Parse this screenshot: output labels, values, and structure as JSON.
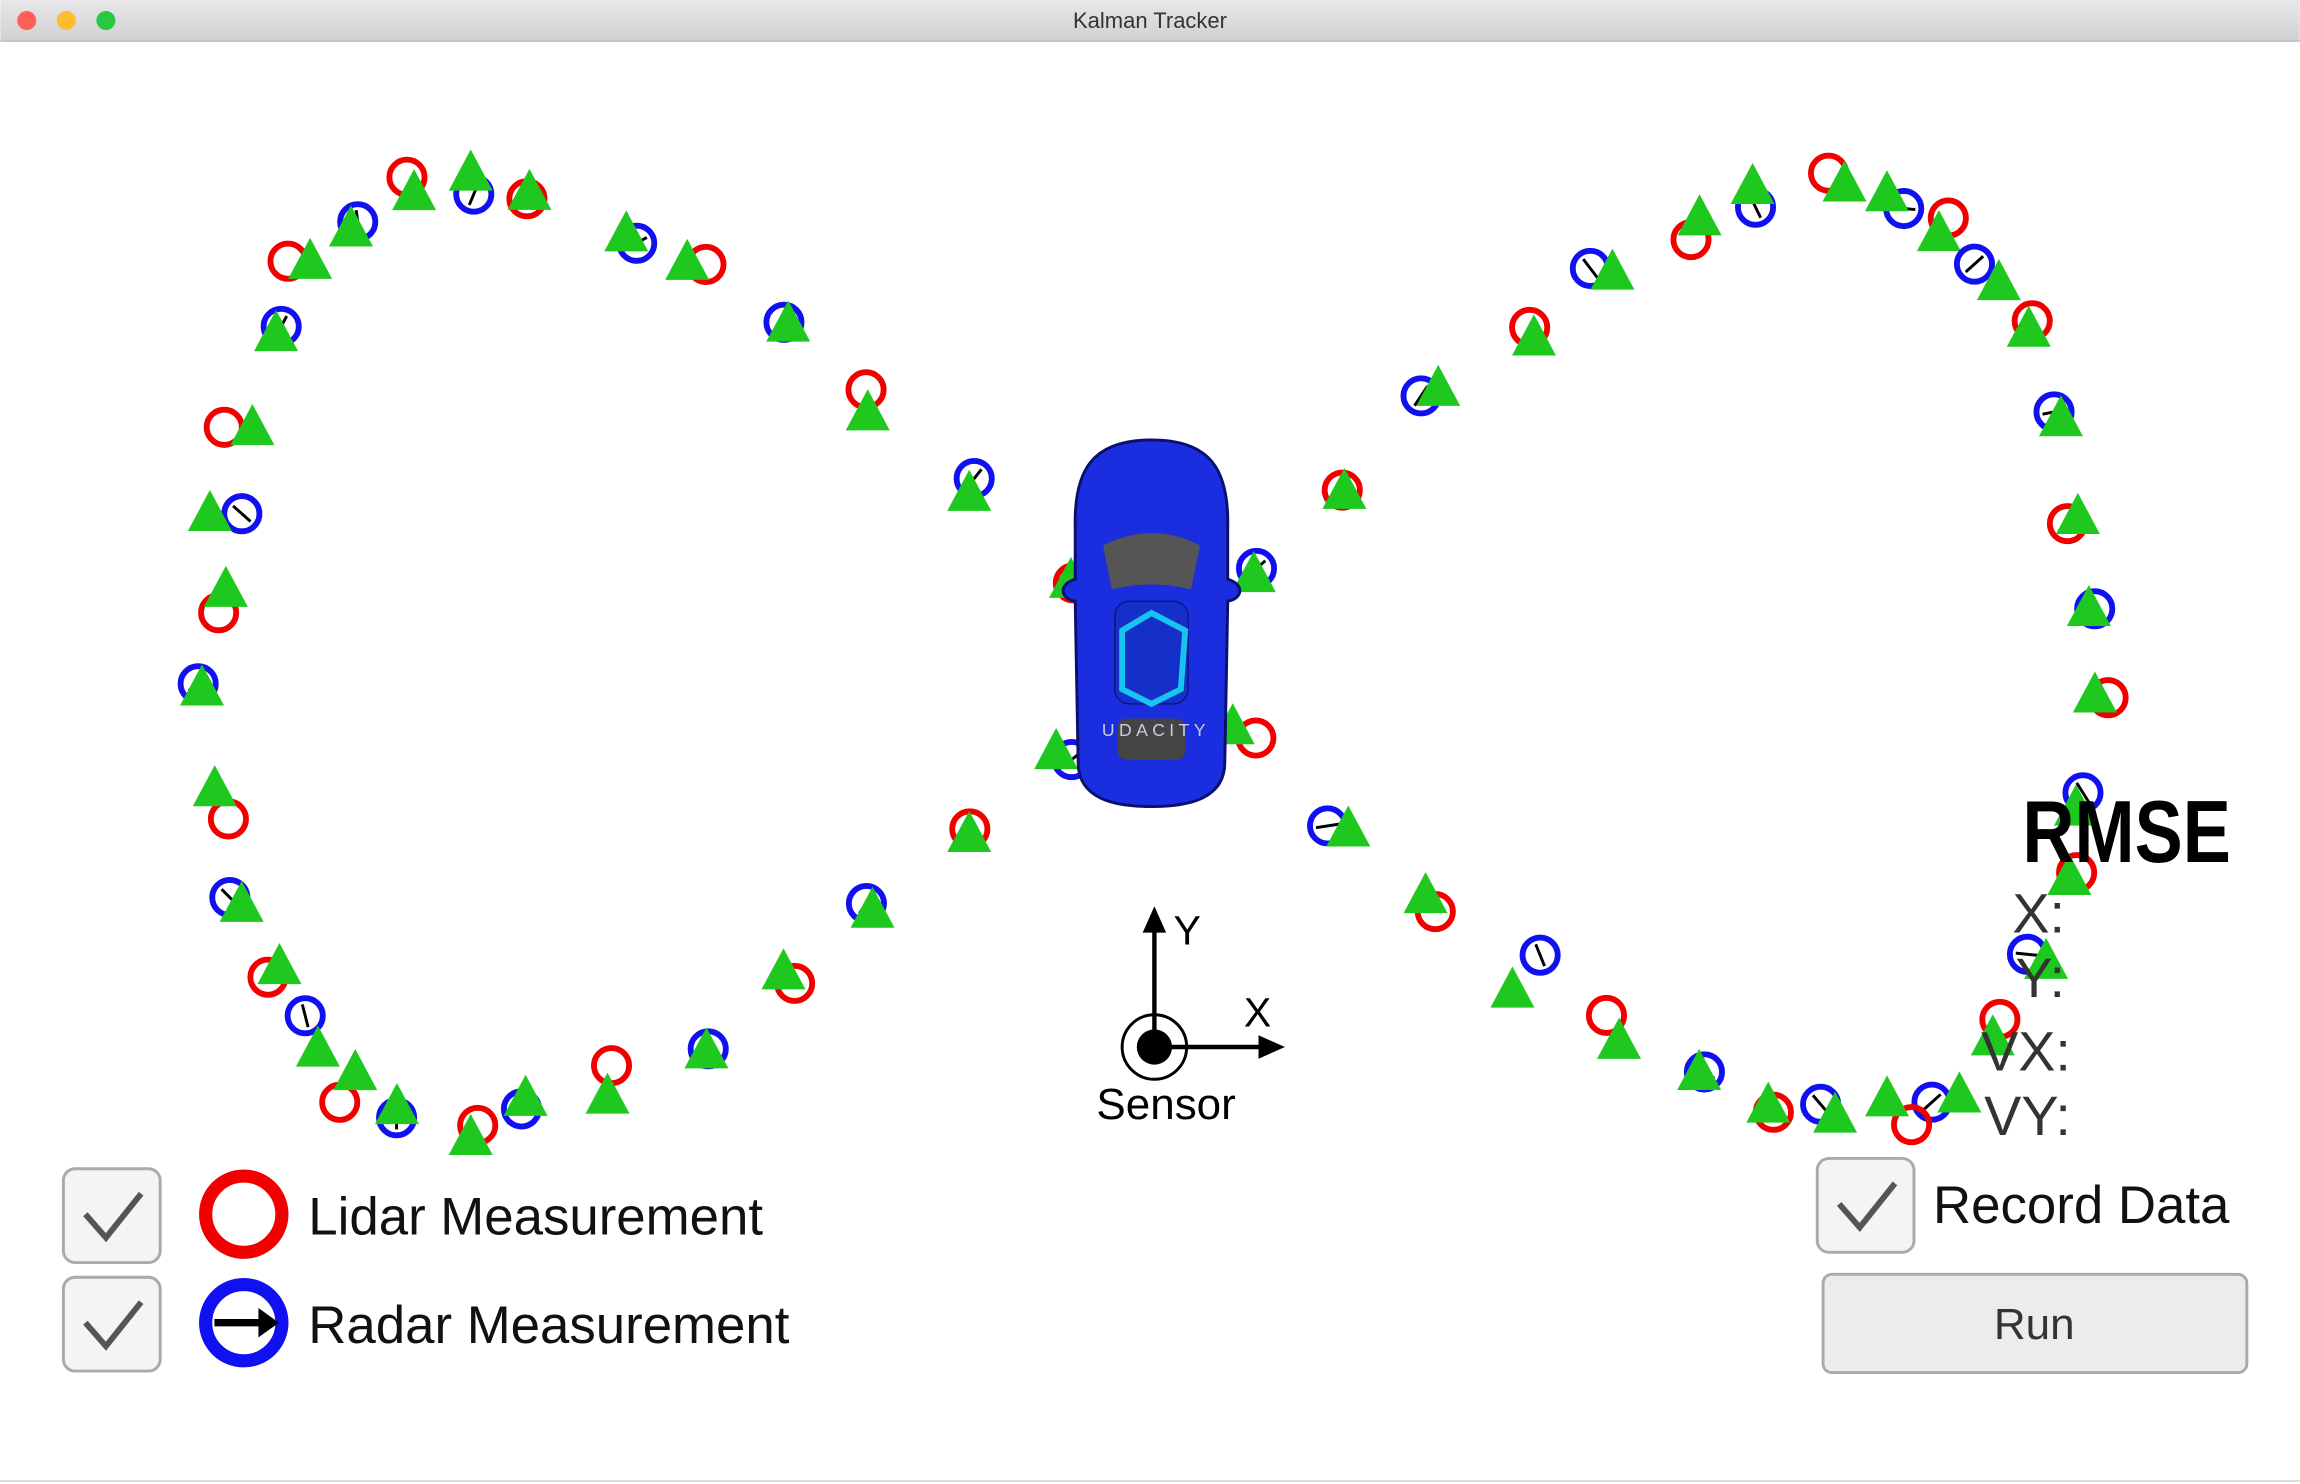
{
  "window": {
    "title": "Kalman Tracker"
  },
  "axes": {
    "y": "Y",
    "x": "X",
    "origin": "Sensor"
  },
  "rmse": {
    "title": "RMSE",
    "labels": [
      "X:",
      "Y:",
      "VX:",
      "VY:"
    ]
  },
  "legend": {
    "lidar": "Lidar Measurement",
    "radar": "Radar Measurement"
  },
  "controls": {
    "record": "Record Data",
    "run": "Run"
  },
  "car": {
    "brand": "UDACITY"
  }
}
